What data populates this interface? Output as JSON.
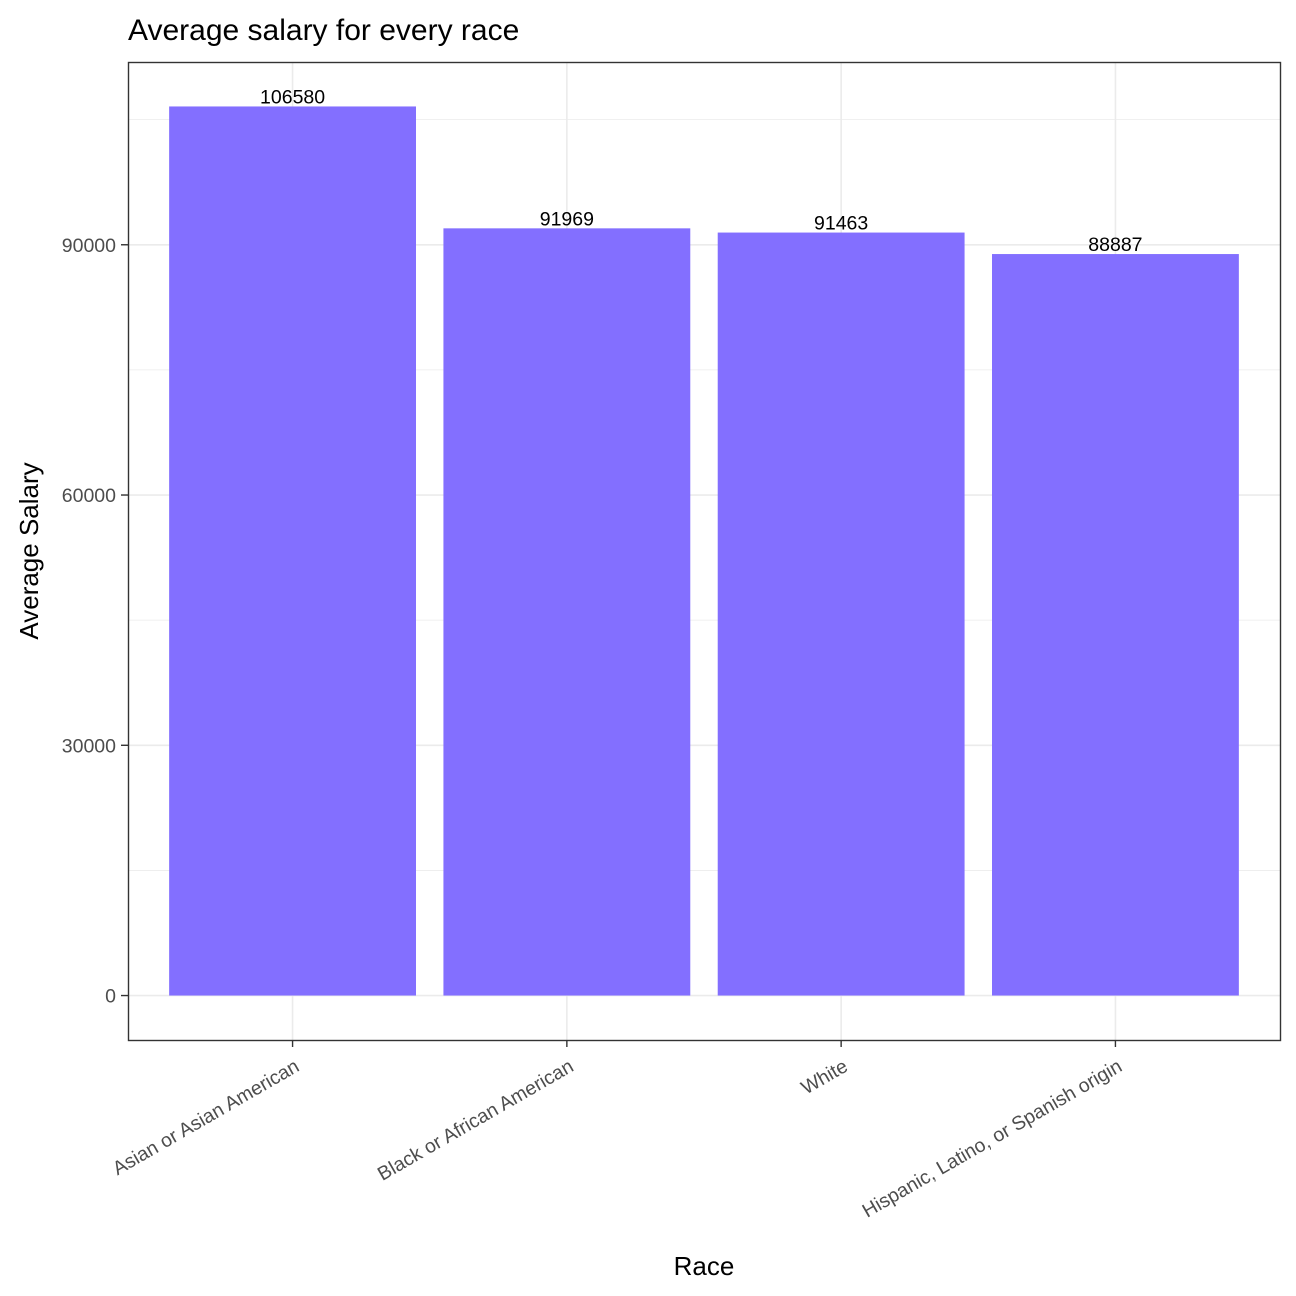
{
  "chart_data": {
    "type": "bar",
    "title": "Average salary for every race",
    "xlabel": "Race",
    "ylabel": "Average Salary",
    "categories": [
      "Asian or Asian American",
      "Black or African American",
      "White",
      "Hispanic, Latino, or Spanish origin"
    ],
    "values": [
      106580,
      91969,
      91463,
      88887
    ],
    "data_labels": [
      "106580",
      "91969",
      "91463",
      "88887"
    ],
    "y_ticks": [
      0,
      30000,
      60000,
      90000
    ],
    "y_tick_labels": [
      "0",
      "30000",
      "60000",
      "90000"
    ],
    "ylim": [
      -5329,
      111909
    ],
    "bar_color": "#836FFF",
    "grid": true,
    "legend": "none"
  }
}
